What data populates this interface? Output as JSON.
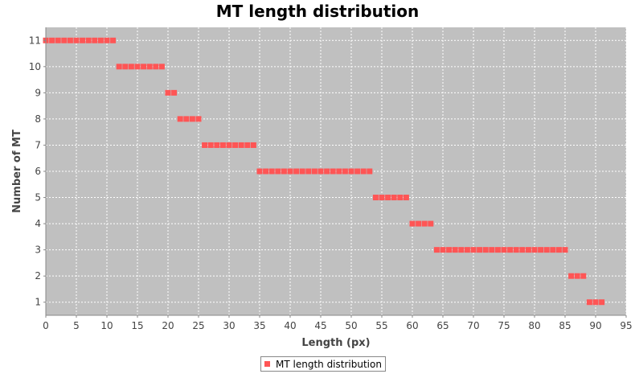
{
  "chart_data": {
    "type": "scatter",
    "title": "MT length distribution",
    "xlabel": "Length (px)",
    "ylabel": "Number of MT",
    "xlim": [
      0,
      95
    ],
    "ylim": [
      0.5,
      11.5
    ],
    "xticks": [
      0,
      5,
      10,
      15,
      20,
      25,
      30,
      35,
      40,
      45,
      50,
      55,
      60,
      65,
      70,
      75,
      80,
      85,
      90,
      95
    ],
    "yticks": [
      1,
      2,
      3,
      4,
      5,
      6,
      7,
      8,
      9,
      10,
      11
    ],
    "grid": true,
    "legend_position": "bottom",
    "series": [
      {
        "name": "MT length distribution",
        "color": "#ff5555",
        "segments": [
          {
            "y": 11,
            "x_start": 0,
            "x_end": 11
          },
          {
            "y": 10,
            "x_start": 12,
            "x_end": 19
          },
          {
            "y": 9,
            "x_start": 20,
            "x_end": 21
          },
          {
            "y": 8,
            "x_start": 22,
            "x_end": 25
          },
          {
            "y": 7,
            "x_start": 26,
            "x_end": 34
          },
          {
            "y": 6,
            "x_start": 35,
            "x_end": 53
          },
          {
            "y": 5,
            "x_start": 54,
            "x_end": 59
          },
          {
            "y": 4,
            "x_start": 60,
            "x_end": 63
          },
          {
            "y": 3,
            "x_start": 64,
            "x_end": 85
          },
          {
            "y": 2,
            "x_start": 86,
            "x_end": 88
          },
          {
            "y": 1,
            "x_start": 89,
            "x_end": 91
          }
        ]
      }
    ]
  }
}
